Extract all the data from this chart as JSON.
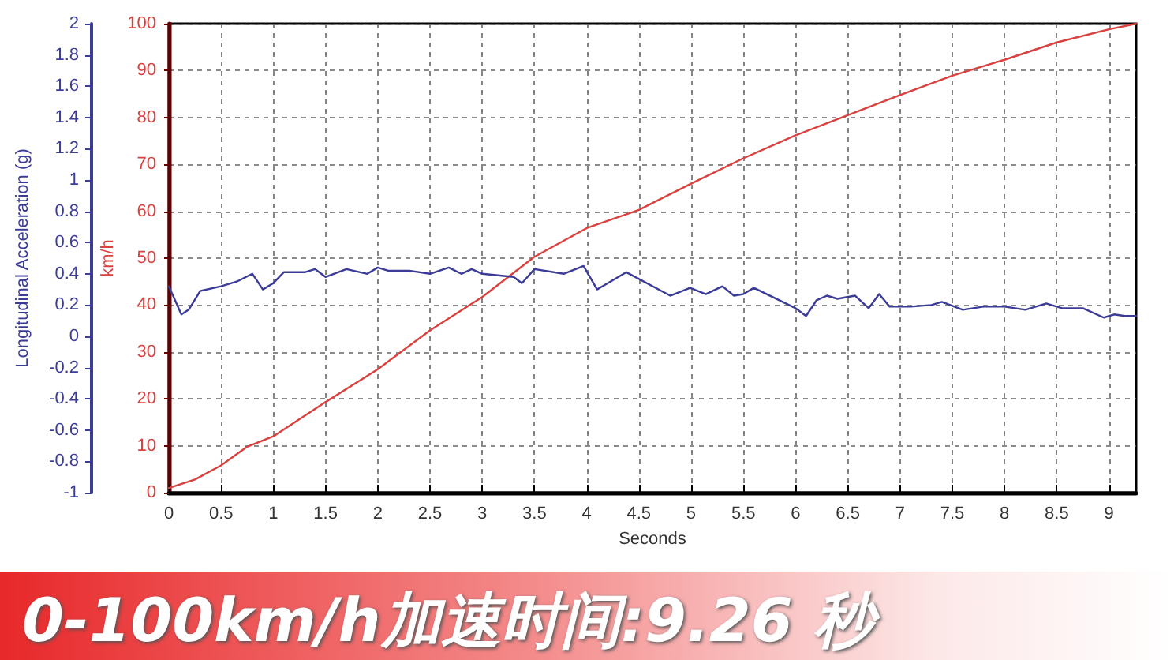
{
  "chart_data": {
    "type": "line",
    "xlabel": "Seconds",
    "ylabel": "Longitudinal Acceleration (g)",
    "y2label": "km/h",
    "annotations": [
      "0-100km/h加速时间:9.26 秒"
    ],
    "xlim": [
      0,
      9.26
    ],
    "xticks": [
      0,
      0.5,
      1,
      1.5,
      2,
      2.5,
      3,
      3.5,
      4,
      4.5,
      5,
      5.5,
      6,
      6.5,
      7,
      7.5,
      8,
      8.5,
      9
    ],
    "ylim": [
      -1,
      2
    ],
    "yticks": [
      -1,
      -0.8,
      -0.6,
      -0.4,
      -0.2,
      0,
      0.2,
      0.4,
      0.6,
      0.8,
      1,
      1.2,
      1.4,
      1.6,
      1.8,
      2
    ],
    "y2lim": [
      0,
      100
    ],
    "y2ticks": [
      0,
      10,
      20,
      30,
      40,
      50,
      60,
      70,
      80,
      90,
      100
    ],
    "grid": true,
    "marker": "none",
    "line_style": "solid",
    "series": [
      {
        "color": "#d9413f",
        "axis": "y2",
        "x": [
          0,
          0.25,
          0.5,
          0.75,
          1,
          1.5,
          2,
          2.5,
          3,
          3.5,
          4,
          4.5,
          5,
          5.5,
          6,
          6.5,
          7,
          7.5,
          8,
          8.5,
          9,
          9.26
        ],
        "values": [
          1,
          2.8,
          5.8,
          9.8,
          12,
          19.3,
          26.3,
          34.6,
          41.7,
          50.3,
          56.4,
          60.3,
          65.9,
          71.3,
          76.2,
          80.5,
          84.8,
          88.9,
          92.3,
          96,
          98.8,
          100
        ]
      },
      {
        "color": "#3b3b98",
        "x": [
          0,
          0.12,
          0.19,
          0.3,
          0.5,
          0.65,
          0.8,
          0.9,
          1,
          1.1,
          1.3,
          1.4,
          1.5,
          1.7,
          1.9,
          2,
          2.1,
          2.3,
          2.5,
          2.68,
          2.8,
          2.9,
          3,
          3.3,
          3.38,
          3.5,
          3.78,
          3.97,
          4.1,
          4.38,
          4.8,
          4.99,
          5.14,
          5.3,
          5.41,
          5.5,
          5.6,
          6,
          6.1,
          6.2,
          6.3,
          6.4,
          6.57,
          6.7,
          6.8,
          6.9,
          7.1,
          7.3,
          7.4,
          7.6,
          7.8,
          8,
          8.2,
          8.4,
          8.55,
          8.75,
          8.95,
          9.05,
          9.15,
          9.26
        ],
        "values": [
          0.32,
          0.14,
          0.17,
          0.29,
          0.32,
          0.35,
          0.4,
          0.3,
          0.34,
          0.41,
          0.41,
          0.43,
          0.38,
          0.43,
          0.4,
          0.44,
          0.42,
          0.42,
          0.4,
          0.44,
          0.4,
          0.43,
          0.4,
          0.38,
          0.34,
          0.43,
          0.4,
          0.45,
          0.3,
          0.41,
          0.26,
          0.31,
          0.27,
          0.32,
          0.26,
          0.27,
          0.31,
          0.18,
          0.13,
          0.23,
          0.26,
          0.24,
          0.26,
          0.18,
          0.27,
          0.19,
          0.19,
          0.2,
          0.22,
          0.17,
          0.19,
          0.19,
          0.17,
          0.21,
          0.18,
          0.18,
          0.12,
          0.14,
          0.13,
          0.13
        ]
      }
    ]
  }
}
